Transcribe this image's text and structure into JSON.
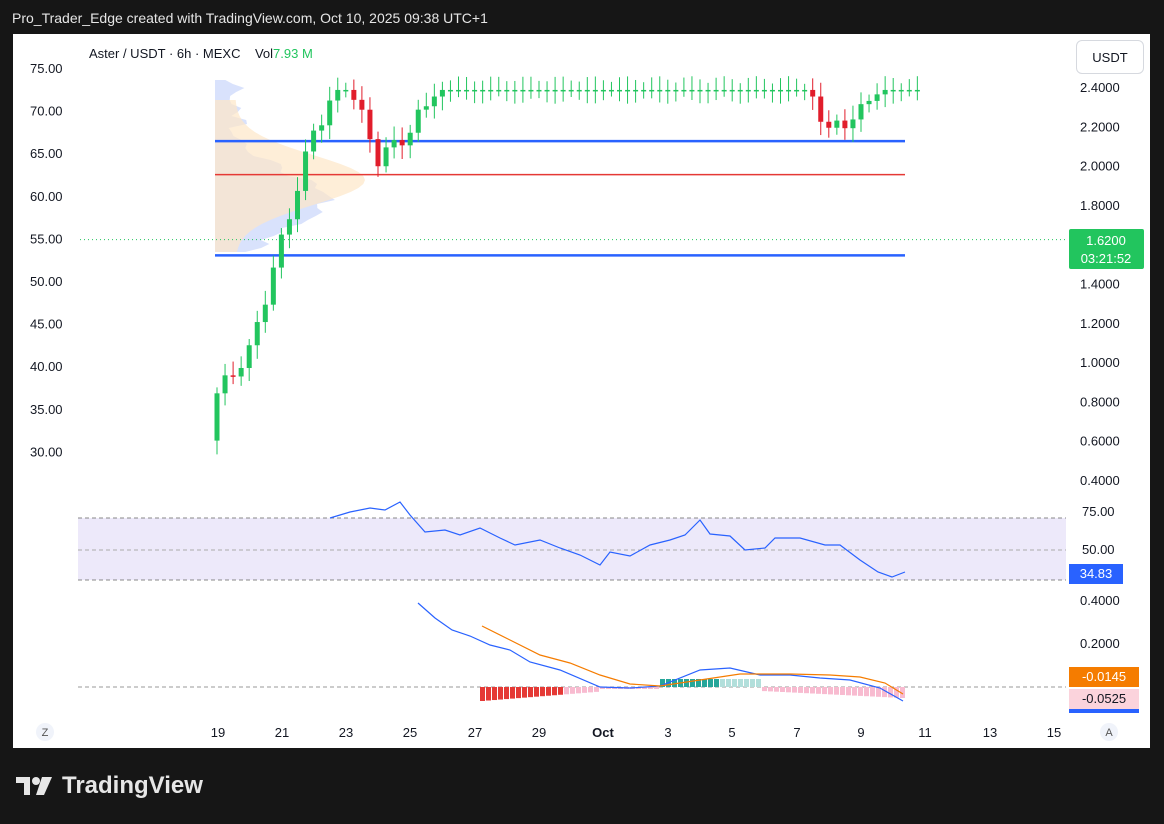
{
  "header": {
    "caption": "Pro_Trader_Edge created with TradingView.com, Oct 10, 2025 09:38 UTC+1"
  },
  "symbol": {
    "label": "Aster / USDT · 6h · MEXC",
    "vol_label": "Vol",
    "vol_value": "7.93 M"
  },
  "currency_button": "USDT",
  "footer": {
    "brand": "TradingView"
  },
  "price_tag": {
    "price": "1.6200",
    "countdown": "03:21:52"
  },
  "rsi_tag": "34.83",
  "macd_tags": {
    "macd": "-0.0145",
    "signal": "-0.0525"
  },
  "scale_buttons": {
    "left": "Z",
    "right": "A"
  },
  "chart_data": {
    "type": "candlestick",
    "x_ticks": [
      "19",
      "21",
      "23",
      "25",
      "27",
      "29",
      "Oct",
      "3",
      "5",
      "7",
      "9",
      "11",
      "13",
      "15"
    ],
    "right_axis_ticks": [
      "2.4000",
      "2.2000",
      "2.0000",
      "1.8000",
      "1.6000",
      "1.4000",
      "1.2000",
      "1.0000",
      "0.8000",
      "0.6000",
      "0.4000"
    ],
    "left_axis_ticks": [
      "75.00",
      "70.00",
      "65.00",
      "60.00",
      "55.00",
      "50.00",
      "45.00",
      "40.00",
      "35.00",
      "30.00"
    ],
    "rsi_ticks": [
      "75.00",
      "50.00"
    ],
    "macd_ticks": [
      "0.4000",
      "0.2000"
    ],
    "colors": {
      "up": "#22c55e",
      "down": "#e11d2b",
      "support_resistance": "#2962ff",
      "mid_line": "#e53935"
    },
    "horizontal_levels": {
      "resistance": 2.12,
      "mid": 1.95,
      "support": 1.54
    },
    "candles_summary": {
      "start_date": "Sep 19",
      "start_low": 0.58,
      "peak": 2.36,
      "peak_date": "Sep 24",
      "oct_high": 2.23,
      "last_close": 1.62
    },
    "rsi": {
      "last": 34.83,
      "band": [
        30,
        70
      ]
    },
    "macd": {
      "macd": -0.0145,
      "signal": -0.0525
    }
  }
}
